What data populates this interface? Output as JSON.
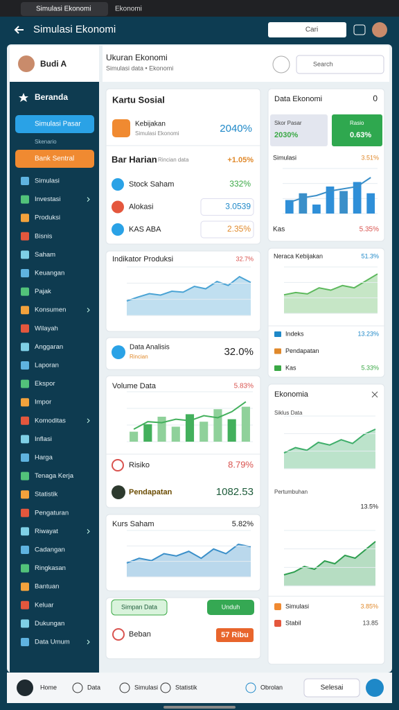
{
  "status_bar": {
    "tabs": [
      "Simulasi Ekonomi",
      "Ekonomi"
    ]
  },
  "app_bar": {
    "title": "Simulasi Ekonomi",
    "search": "Cari"
  },
  "sidebar": {
    "user": "Budi A",
    "heading": "Beranda",
    "selected": "Simulasi Pasar",
    "section_label": "Skenario",
    "highlight": "Bank Sentral",
    "items": [
      "Simulasi",
      "Investasi",
      "Produksi",
      "Bisnis",
      "Saham",
      "Keuangan",
      "Pajak",
      "Konsumen",
      "Wilayah",
      "Anggaran",
      "Laporan",
      "Ekspor",
      "Impor",
      "Komoditas",
      "Inflasi",
      "Harga",
      "Tenaga Kerja",
      "Statistik",
      "Pengaturan",
      "Riwayat",
      "Cadangan",
      "Ringkasan",
      "Bantuan",
      "Keluar",
      "Dukungan",
      "Data Umum"
    ]
  },
  "content_header": {
    "title": "Ukuran Ekonomi",
    "subtitle": "Simulasi data • Ekonomi",
    "search": "Search"
  },
  "left": {
    "summary": {
      "title": "Kartu Sosial",
      "policy": {
        "label": "Kebijakan",
        "sub": "Simulasi Ekonomi",
        "value": "2040%"
      },
      "daily": {
        "label": "Bar Harian",
        "sub": "Rincian data",
        "value": "+1.05%"
      },
      "rows": [
        {
          "label": "Stock Saham",
          "value": "332%"
        },
        {
          "label": "Alokasi",
          "value": "3.0539"
        },
        {
          "label": "KAS ABA",
          "value": "2.35%"
        }
      ]
    },
    "production": {
      "title": "Indikator Produksi",
      "value": "32.7%",
      "chart": {
        "values": [
          30,
          38,
          45,
          42,
          50,
          48,
          60,
          55,
          70,
          62,
          80,
          68
        ],
        "ylim": [
          0,
          100
        ],
        "color": "#4aa3d4"
      }
    },
    "analysis": {
      "label": "Data Analisis",
      "sub": "Rincian",
      "value": "32.0%"
    },
    "volume": {
      "title": "Volume Data",
      "value": "5.83%",
      "chart": {
        "bars": [
          20,
          35,
          50,
          30,
          55,
          40,
          65,
          45,
          70
        ],
        "values": [
          25,
          40,
          38,
          45,
          42,
          52,
          48,
          60,
          80
        ],
        "ylim": [
          0,
          100
        ],
        "color": "#43b05c",
        "bar_color": "#8fd19a"
      },
      "rows": [
        {
          "label": "Risiko",
          "value": "8.79%"
        },
        {
          "label": "Pendapatan",
          "value": "1082.53"
        }
      ]
    },
    "rate": {
      "title": "Kurs Saham",
      "value": "5.82%",
      "chart": {
        "values": [
          30,
          40,
          35,
          50,
          45,
          55,
          40,
          60,
          50,
          70,
          65
        ],
        "ylim": [
          0,
          100
        ],
        "color": "#3a8fc9"
      }
    },
    "actions": {
      "save": "Simpan Data",
      "download": "Unduh",
      "expense": {
        "label": "Beban",
        "value": "57 Ribu"
      }
    }
  },
  "right": {
    "overview": {
      "title": "Data Ekonomi",
      "count": "0",
      "tiles": [
        {
          "label": "Skor Pasar",
          "value": "2030%"
        },
        {
          "label": "Rasio",
          "value": "0.63%"
        }
      ],
      "chart_title": "Simulasi",
      "chart_value": "3.51%",
      "chart": {
        "bars": [
          30,
          45,
          20,
          60,
          50,
          70,
          45
        ],
        "values": [
          25,
          35,
          40,
          50,
          55,
          60,
          80
        ],
        "ylim": [
          0,
          100
        ],
        "color": "#3a8fc9",
        "bar_color": "#2f8fd8"
      },
      "footer": {
        "label": "Kas",
        "value": "5.35%"
      }
    },
    "policy": {
      "title": "Neraca Kebijakan",
      "value": "51.3%",
      "chart": {
        "values": [
          40,
          45,
          42,
          55,
          50,
          60,
          55,
          70,
          85
        ],
        "ylim": [
          0,
          100
        ],
        "color": "#5cb85c"
      },
      "rows": [
        {
          "label": "Indeks",
          "value": "13.23%"
        },
        {
          "label": "Pendapatan"
        },
        {
          "label": "Kas",
          "value": "5.33%"
        }
      ]
    },
    "economy": {
      "title": "Ekonomia",
      "chart1_title": "Siklus Data",
      "chart1": {
        "values": [
          30,
          40,
          35,
          50,
          45,
          55,
          48,
          65,
          75
        ],
        "ylim": [
          0,
          100
        ],
        "color": "#3fae6a"
      },
      "chart2_title": "Pertumbuhan",
      "chart2_value": "13.5%",
      "chart2": {
        "values": [
          20,
          25,
          35,
          30,
          45,
          40,
          55,
          50,
          65,
          80
        ],
        "ylim": [
          0,
          100
        ],
        "color": "#2e9e4f"
      },
      "rows": [
        {
          "label": "Simulasi",
          "value": "3.85%"
        },
        {
          "label": "Stabil",
          "value": "13.85"
        }
      ]
    }
  },
  "bottom_bar": {
    "items": [
      "Home",
      "Data",
      "Simulasi",
      "Statistik",
      "Obrolan"
    ],
    "button": "Selesai"
  }
}
